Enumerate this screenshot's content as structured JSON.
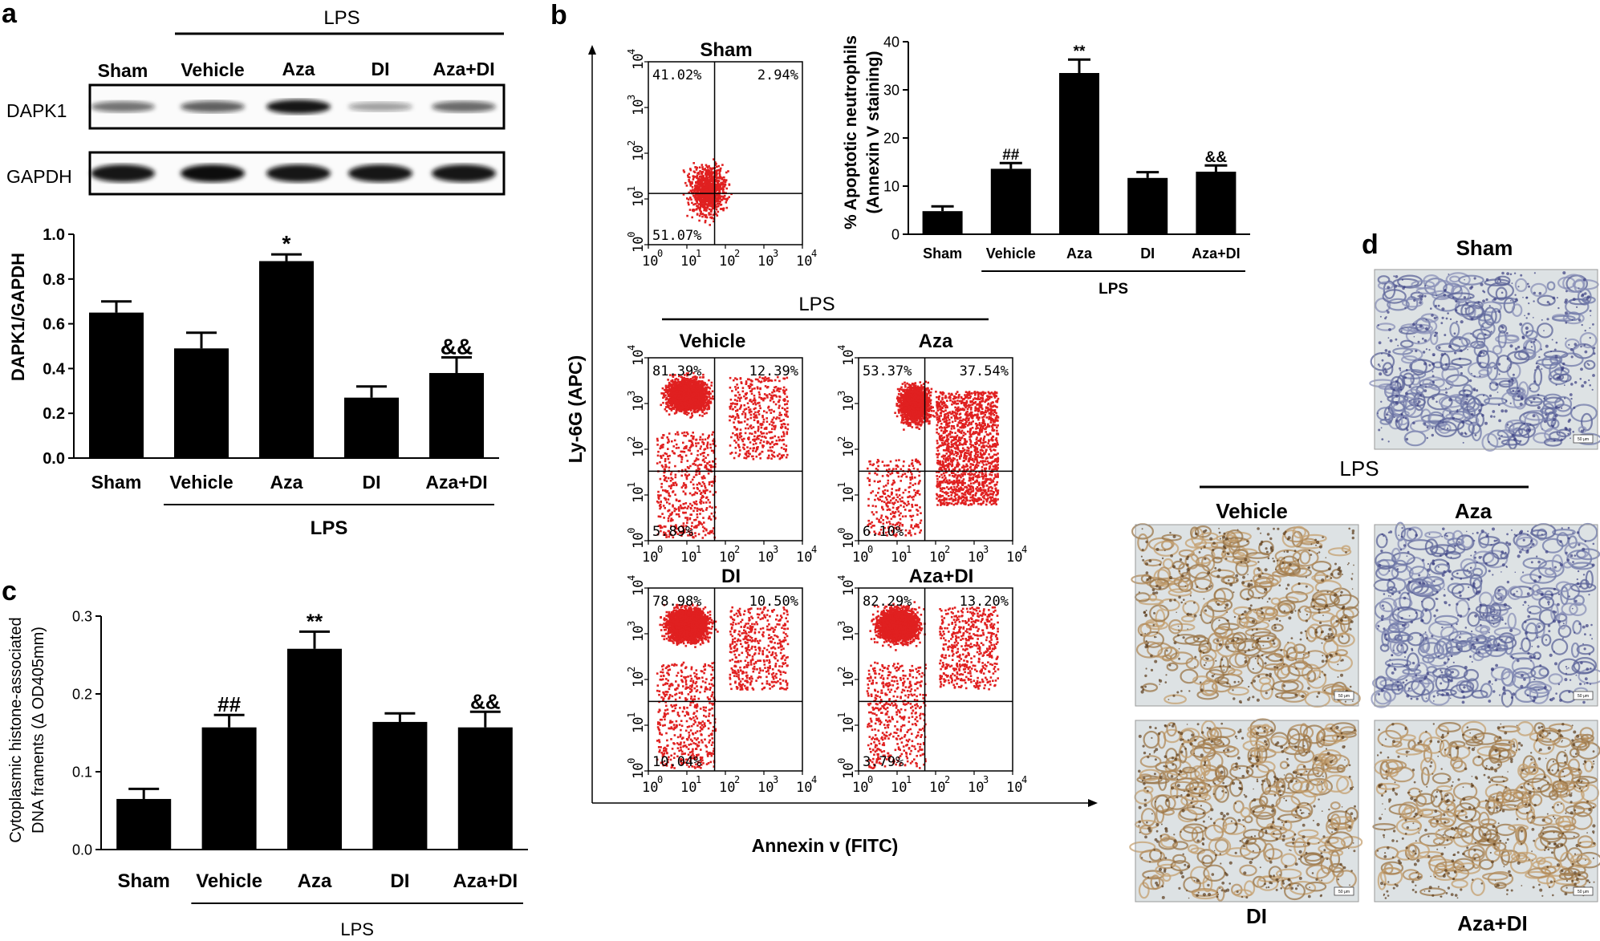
{
  "panel_labels": {
    "a": "a",
    "b": "b",
    "c": "c",
    "d": "d"
  },
  "western_blot": {
    "lps_label": "LPS",
    "lanes": [
      "Sham",
      "Vehicle",
      "Aza",
      "DI",
      "Aza+DI"
    ],
    "rows": [
      {
        "label": "DAPK1",
        "intensity": [
          0.45,
          0.55,
          0.95,
          0.2,
          0.5
        ]
      },
      {
        "label": "GAPDH",
        "intensity": [
          0.95,
          1,
          0.95,
          0.95,
          0.95
        ]
      }
    ]
  },
  "flow": {
    "x_axis_label": "Annexin v (FITC)",
    "y_axis_label": "Ly-6G (APC)",
    "lps_label": "LPS",
    "tick_labels": [
      "10",
      "10",
      "10",
      "10",
      "10"
    ],
    "tick_exponents": [
      "0",
      "1",
      "2",
      "3",
      "4"
    ],
    "plots": [
      {
        "id": "sham",
        "title": "Sham",
        "upper_left": "41.02%",
        "upper_right": "2.94%",
        "lower_left": "51.07%",
        "lower_right": "",
        "density": "low"
      },
      {
        "id": "vehicle",
        "title": "Vehicle",
        "upper_left": "81.39%",
        "upper_right": "12.39%",
        "lower_left": "5.89%",
        "lower_right": "",
        "density": "high"
      },
      {
        "id": "aza",
        "title": "Aza",
        "upper_left": "53.37%",
        "upper_right": "37.54%",
        "lower_left": "6.10%",
        "lower_right": "",
        "density": "spread"
      },
      {
        "id": "di",
        "title": "DI",
        "upper_left": "78.98%",
        "upper_right": "10.50%",
        "lower_left": "10.04%",
        "lower_right": "",
        "density": "high"
      },
      {
        "id": "azadi",
        "title": "Aza+DI",
        "upper_left": "82.29%",
        "upper_right": "13.20%",
        "lower_left": "3.79%",
        "lower_right": "",
        "density": "high"
      }
    ]
  },
  "histology": {
    "sham_title": "Sham",
    "lps_label": "LPS",
    "images": [
      {
        "id": "sham",
        "label": "Sham",
        "stain": "blue"
      },
      {
        "id": "vehicle",
        "label": "Vehicle",
        "stain": "brown"
      },
      {
        "id": "aza",
        "label": "Aza",
        "stain": "blue"
      },
      {
        "id": "di",
        "label": "DI",
        "stain": "brown"
      },
      {
        "id": "azadi",
        "label": "Aza+DI",
        "stain": "brown"
      }
    ],
    "scale_text": "50 μm"
  },
  "chart_data": [
    {
      "id": "a",
      "type": "bar",
      "categories": [
        "Sham",
        "Vehicle",
        "Aza",
        "DI",
        "Aza+DI"
      ],
      "values": [
        0.65,
        0.49,
        0.88,
        0.27,
        0.38
      ],
      "errors": [
        0.05,
        0.07,
        0.03,
        0.05,
        0.07
      ],
      "annotations": [
        "",
        "",
        "*",
        "",
        "&&"
      ],
      "ylabel": "DAPK1/GAPDH",
      "xlabel": "",
      "group_label": "LPS",
      "ylim": [
        0,
        1.0
      ],
      "yticks": [
        0.0,
        0.2,
        0.4,
        0.6,
        0.8,
        1.0
      ],
      "ytick_labels": [
        "0.0",
        "0.2",
        "0.4",
        "0.6",
        "0.8",
        "1.0"
      ]
    },
    {
      "id": "b",
      "type": "bar",
      "categories": [
        "Sham",
        "Vehicle",
        "Aza",
        "DI",
        "Aza+DI"
      ],
      "values": [
        4.8,
        13.6,
        33.5,
        11.7,
        13.0
      ],
      "errors": [
        1.0,
        1.2,
        2.8,
        1.2,
        1.3
      ],
      "annotations": [
        "",
        "##",
        "**",
        "",
        "&&"
      ],
      "ylabel": "% Apoptotic neutrophils\n(Annexin V staining)",
      "xlabel": "",
      "group_label": "LPS",
      "ylim": [
        0,
        40
      ],
      "yticks": [
        0,
        10,
        20,
        30,
        40
      ],
      "ytick_labels": [
        "0",
        "10",
        "20",
        "30",
        "40"
      ]
    },
    {
      "id": "c",
      "type": "bar",
      "categories": [
        "Sham",
        "Vehicle",
        "Aza",
        "DI",
        "Aza+DI"
      ],
      "values": [
        0.065,
        0.157,
        0.258,
        0.164,
        0.157
      ],
      "errors": [
        0.013,
        0.016,
        0.022,
        0.011,
        0.02
      ],
      "annotations": [
        "",
        "##",
        "**",
        "",
        "&&"
      ],
      "ylabel": "Cytoplasmic histone-associated\nDNA framents (Δ OD405mm)",
      "xlabel": "",
      "group_label": "LPS",
      "ylim": [
        0,
        0.3
      ],
      "yticks": [
        0.0,
        0.1,
        0.2,
        0.3
      ],
      "ytick_labels": [
        "0.0",
        "0.1",
        "0.2",
        "0.3"
      ]
    }
  ]
}
